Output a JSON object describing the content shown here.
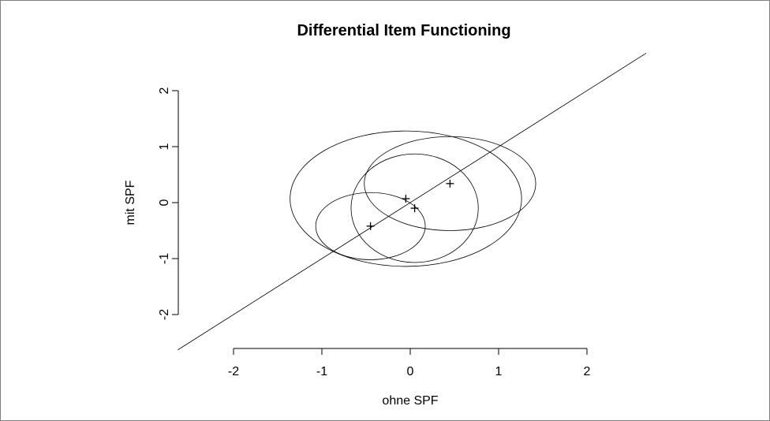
{
  "chart_data": {
    "type": "scatter",
    "title": "Differential Item Functioning",
    "xlabel": "ohne SPF",
    "ylabel": "mit SPF",
    "xlim": [
      -2,
      2
    ],
    "ylim": [
      -2,
      2
    ],
    "x_ticks": [
      "-2",
      "-1",
      "0",
      "1",
      "2"
    ],
    "y_ticks": [
      "-2",
      "-1",
      "0",
      "1",
      "2"
    ],
    "grid": false,
    "reference_line": {
      "slope": 1,
      "intercept": 0
    },
    "points": [
      {
        "x": -0.45,
        "y": -0.42
      },
      {
        "x": -0.05,
        "y": 0.07
      },
      {
        "x": 0.05,
        "y": -0.1
      },
      {
        "x": 0.45,
        "y": 0.34
      }
    ],
    "ellipses": [
      {
        "cx": -0.45,
        "cy": -0.42,
        "rx": 0.62,
        "ry": 0.6
      },
      {
        "cx": 0.05,
        "cy": -0.1,
        "rx": 0.72,
        "ry": 0.97
      },
      {
        "cx": -0.05,
        "cy": 0.07,
        "rx": 1.31,
        "ry": 1.21
      },
      {
        "cx": 0.45,
        "cy": 0.34,
        "rx": 0.97,
        "ry": 0.84
      }
    ],
    "colors": {
      "stroke": "#000000",
      "frame": "#7f7f7f"
    }
  }
}
